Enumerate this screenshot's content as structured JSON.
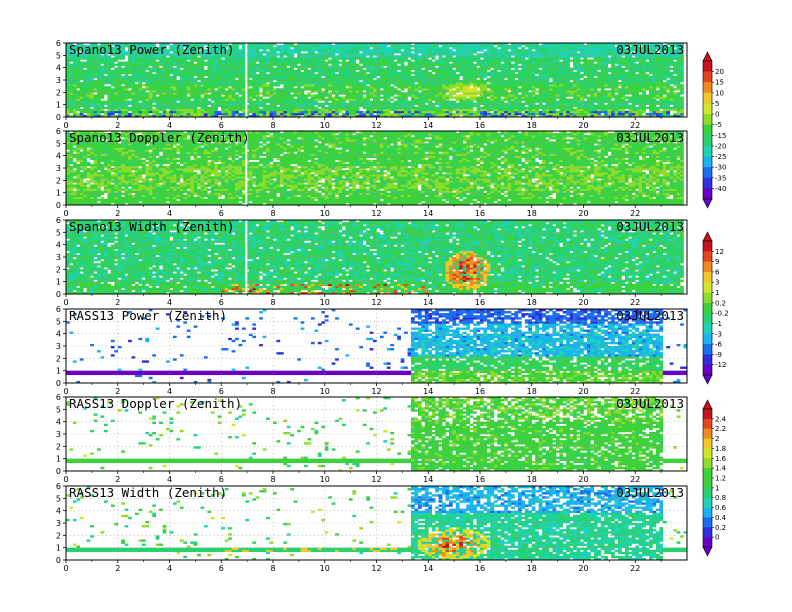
{
  "chart_data": [
    {
      "type": "heatmap",
      "title": "Spano13 Power (Zenith)",
      "date": "03JUL2013",
      "xlim": [
        0,
        24
      ],
      "ylim": [
        0,
        6
      ],
      "x_ticks": [
        "0",
        "2",
        "4",
        "6",
        "8",
        "10",
        "12",
        "14",
        "16",
        "18",
        "20",
        "22"
      ],
      "y_ticks": [
        "0",
        "1",
        "2",
        "3",
        "4",
        "5",
        "6"
      ],
      "colorbar": "A",
      "data_x_range": [
        0,
        23.8
      ],
      "feature": "power"
    },
    {
      "type": "heatmap",
      "title": "Spano13 Doppler (Zenith)",
      "date": "03JUL2013",
      "xlim": [
        0,
        24
      ],
      "ylim": [
        0,
        6
      ],
      "x_ticks": [
        "0",
        "2",
        "4",
        "6",
        "8",
        "10",
        "12",
        "14",
        "16",
        "18",
        "20",
        "22"
      ],
      "y_ticks": [
        "0",
        "1",
        "2",
        "3",
        "4",
        "5",
        "6"
      ],
      "colorbar": "A",
      "data_x_range": [
        0,
        23.8
      ],
      "feature": "doppler"
    },
    {
      "type": "heatmap",
      "title": "Spano13 Width (Zenith)",
      "date": "03JUL2013",
      "xlim": [
        0,
        24
      ],
      "ylim": [
        0,
        6
      ],
      "x_ticks": [
        "0",
        "2",
        "4",
        "6",
        "8",
        "10",
        "12",
        "14",
        "16",
        "18",
        "20",
        "22"
      ],
      "y_ticks": [
        "0",
        "1",
        "2",
        "3",
        "4",
        "5",
        "6"
      ],
      "colorbar": "B",
      "data_x_range": [
        0,
        23.8
      ],
      "feature": "width"
    },
    {
      "type": "heatmap",
      "title": "RASS13 Power (Zenith)",
      "date": "03JUL2013",
      "xlim": [
        0,
        24
      ],
      "ylim": [
        0,
        6
      ],
      "x_ticks": [
        "0",
        "2",
        "4",
        "6",
        "8",
        "10",
        "12",
        "14",
        "16",
        "18",
        "20",
        "22"
      ],
      "y_ticks": [
        "0",
        "1",
        "2",
        "3",
        "4",
        "5",
        "6"
      ],
      "colorbar": "B",
      "data_x_range": [
        13.3,
        23.0
      ],
      "feature": "rass_power"
    },
    {
      "type": "heatmap",
      "title": "RASS13 Doppler (Zenith)",
      "date": "03JUL2013",
      "xlim": [
        0,
        24
      ],
      "ylim": [
        0,
        6
      ],
      "x_ticks": [
        "0",
        "2",
        "4",
        "6",
        "8",
        "10",
        "12",
        "14",
        "16",
        "18",
        "20",
        "22"
      ],
      "y_ticks": [
        "0",
        "1",
        "2",
        "3",
        "4",
        "5",
        "6"
      ],
      "colorbar": "C",
      "data_x_range": [
        13.3,
        23.0
      ],
      "feature": "rass_doppler"
    },
    {
      "type": "heatmap",
      "title": "RASS13 Width (Zenith)",
      "date": "03JUL2013",
      "xlim": [
        0,
        24
      ],
      "ylim": [
        0,
        6
      ],
      "x_ticks": [
        "0",
        "2",
        "4",
        "6",
        "8",
        "10",
        "12",
        "14",
        "16",
        "18",
        "20",
        "22"
      ],
      "y_ticks": [
        "0",
        "1",
        "2",
        "3",
        "4",
        "5",
        "6"
      ],
      "colorbar": "C",
      "data_x_range": [
        13.3,
        23.0
      ],
      "feature": "rass_width"
    }
  ],
  "colorbars": {
    "A": [
      "20",
      "15",
      "10",
      "5",
      "0",
      "-5",
      "-15",
      "-20",
      "-25",
      "-30",
      "-35",
      "-40"
    ],
    "B": [
      "12",
      "9",
      "6",
      "3",
      "1",
      "0.2",
      "-0.2",
      "-1",
      "-3",
      "-6",
      "-9",
      "-12"
    ],
    "C": [
      "2.4",
      "2.2",
      "2",
      "1.8",
      "1.6",
      "1.4",
      "1.2",
      "1",
      "0.8",
      "0.6",
      "0.4",
      "0.2",
      "0"
    ]
  },
  "palette": [
    "#6a00c8",
    "#2f2fe0",
    "#1a6ef0",
    "#18b4f0",
    "#1ed2b4",
    "#28d26e",
    "#3cd23c",
    "#8cdc28",
    "#d2e628",
    "#f0c828",
    "#f08c1e",
    "#e6461e",
    "#c8141e"
  ]
}
